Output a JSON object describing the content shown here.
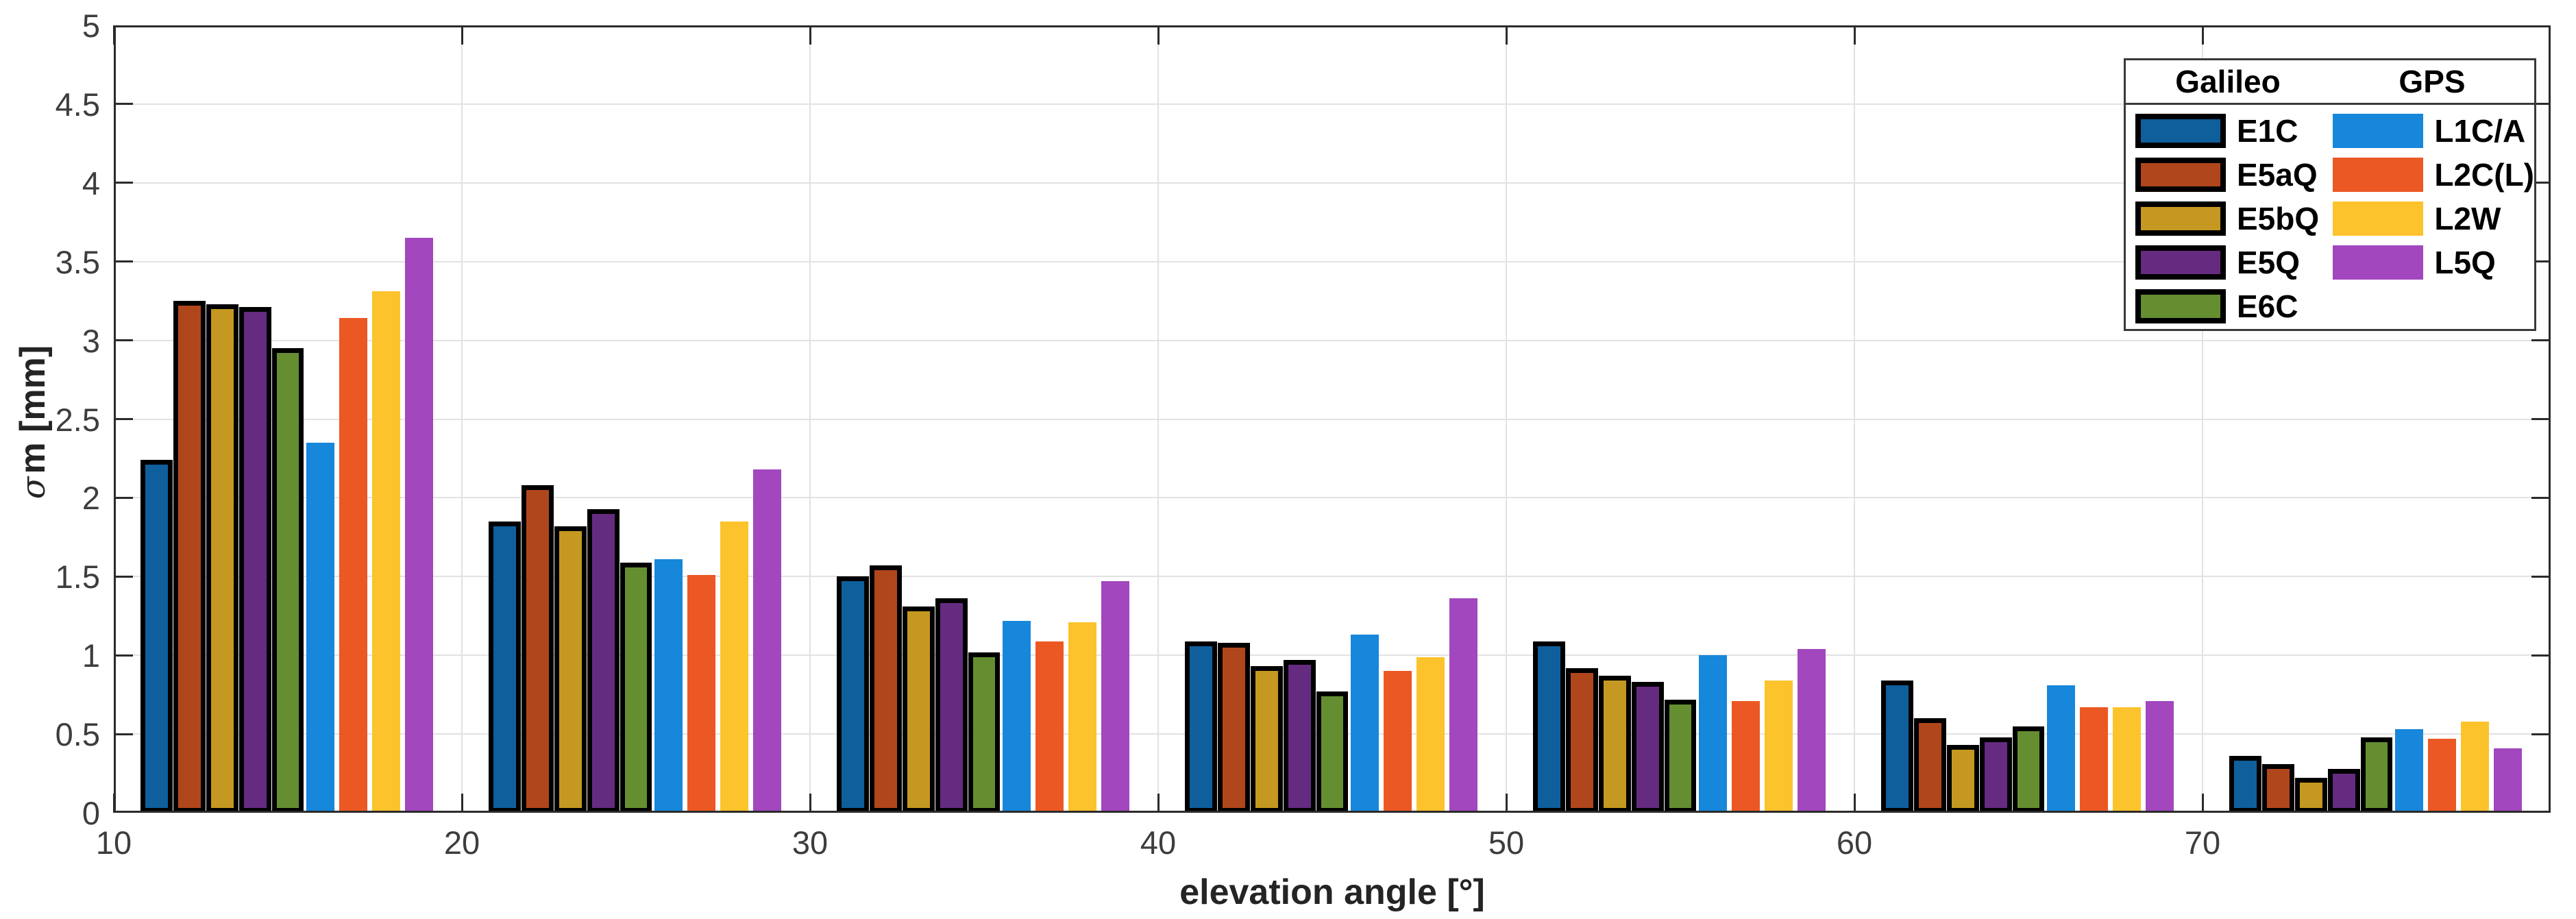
{
  "figure": {
    "background": "#ffffff",
    "axis_color": "#2b2b2b",
    "grid_color": "#e2e2e2",
    "tick_label_color": "#3d3d3d"
  },
  "chart_data": {
    "type": "bar",
    "title": "",
    "xlabel": "elevation angle [°]",
    "ylabel": "σm [mm]",
    "ylabel_sigma": "σ",
    "ylabel_rest": "m [mm]",
    "xlim": [
      10,
      80
    ],
    "ylim": [
      0,
      5
    ],
    "x_ticks": [
      10,
      20,
      30,
      40,
      50,
      60,
      70
    ],
    "y_ticks": [
      0,
      0.5,
      1,
      1.5,
      2,
      2.5,
      3,
      3.5,
      4,
      4.5,
      5
    ],
    "grid": true,
    "bar_group_mode": "grouped",
    "group_span_deg": 8.5,
    "categories": [
      15,
      25,
      35,
      45,
      55,
      65,
      75
    ],
    "series": [
      {
        "name": "E1C",
        "group": "Galileo",
        "color": "#0F5F9C",
        "edge": "#000000",
        "values": [
          2.24,
          1.85,
          1.5,
          1.09,
          1.09,
          0.84,
          0.36
        ]
      },
      {
        "name": "E5aQ",
        "group": "Galileo",
        "color": "#B0471C",
        "edge": "#000000",
        "values": [
          3.25,
          2.08,
          1.57,
          1.08,
          0.92,
          0.6,
          0.31
        ]
      },
      {
        "name": "E5bQ",
        "group": "Galileo",
        "color": "#C49821",
        "edge": "#000000",
        "values": [
          3.23,
          1.82,
          1.31,
          0.93,
          0.87,
          0.43,
          0.22
        ]
      },
      {
        "name": "E5Q",
        "group": "Galileo",
        "color": "#652B81",
        "edge": "#000000",
        "values": [
          3.21,
          1.93,
          1.36,
          0.97,
          0.83,
          0.48,
          0.28
        ]
      },
      {
        "name": "E6C",
        "group": "Galileo",
        "color": "#648E30",
        "edge": "#000000",
        "values": [
          2.95,
          1.59,
          1.02,
          0.77,
          0.72,
          0.55,
          0.48
        ]
      },
      {
        "name": "L1C/A",
        "group": "GPS",
        "color": "#1787DB",
        "edge": null,
        "values": [
          2.35,
          1.61,
          1.22,
          1.13,
          1.0,
          0.81,
          0.53
        ]
      },
      {
        "name": "L2C(L)",
        "group": "GPS",
        "color": "#EC5823",
        "edge": null,
        "values": [
          3.14,
          1.51,
          1.09,
          0.9,
          0.71,
          0.67,
          0.47
        ]
      },
      {
        "name": "L2W",
        "group": "GPS",
        "color": "#FCC32D",
        "edge": null,
        "values": [
          3.31,
          1.85,
          1.21,
          0.99,
          0.84,
          0.67,
          0.58
        ]
      },
      {
        "name": "L5Q",
        "group": "GPS",
        "color": "#A247BD",
        "edge": null,
        "values": [
          3.65,
          2.18,
          1.47,
          1.36,
          1.04,
          0.71,
          0.41
        ]
      }
    ],
    "legend": {
      "position": "top-right",
      "columns": [
        {
          "header": "Galileo",
          "items": [
            "E1C",
            "E5aQ",
            "E5bQ",
            "E5Q",
            "E6C"
          ]
        },
        {
          "header": "GPS",
          "items": [
            "L1C/A",
            "L2C(L)",
            "L2W",
            "L5Q"
          ]
        }
      ]
    }
  }
}
